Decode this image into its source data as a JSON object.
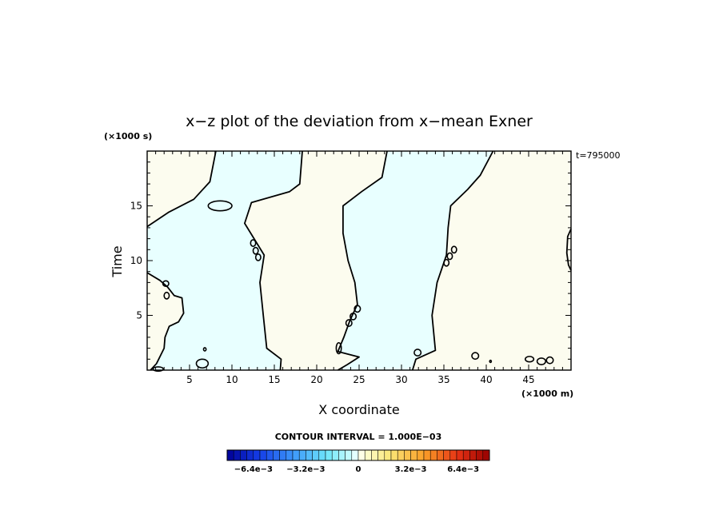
{
  "chart_data": {
    "type": "contour",
    "title": "x−z plot of the deviation from x−mean Exner",
    "xlabel": "X coordinate",
    "ylabel": "Time",
    "x_unit": "(×1000 m)",
    "y_unit": "(×1000 s)",
    "time_annotation": "t=795000",
    "xlim": [
      0,
      50
    ],
    "ylim": [
      0,
      20
    ],
    "xticks": [
      "5",
      "10",
      "15",
      "20",
      "25",
      "30",
      "35",
      "40",
      "45"
    ],
    "yticks": [
      "5",
      "10",
      "15"
    ],
    "x_tick_values": [
      5,
      10,
      15,
      20,
      25,
      30,
      35,
      40,
      45
    ],
    "y_tick_values": [
      5,
      10,
      15
    ],
    "contour_interval_label": "CONTOUR INTERVAL = 1.000E−03",
    "contour_interval": 0.001,
    "colorbar_labels": [
      "−6.4e−3",
      "−3.2e−3",
      "0",
      "3.2e−3",
      "6.4e−3"
    ],
    "colorbar_range": [
      -0.008,
      0.008
    ],
    "colorbar_bins": 40,
    "zero_contours": [
      {
        "name": "band1-right",
        "points": [
          [
            8.1,
            20
          ],
          [
            7.4,
            17.2
          ],
          [
            5.5,
            15.6
          ],
          [
            2.5,
            14.4
          ],
          [
            0,
            13.1
          ]
        ]
      },
      {
        "name": "band1-left",
        "points": [
          [
            0,
            8.9
          ],
          [
            1.5,
            8.2
          ],
          [
            2.4,
            7.6
          ],
          [
            3.2,
            6.8
          ],
          [
            4.1,
            6.6
          ],
          [
            4.3,
            5.2
          ],
          [
            3.7,
            4.4
          ],
          [
            2.6,
            4.0
          ],
          [
            2.1,
            3.0
          ],
          [
            2.0,
            2.0
          ],
          [
            1.1,
            0.6
          ],
          [
            0.4,
            0
          ]
        ]
      },
      {
        "name": "band2-left",
        "points": [
          [
            18.3,
            20
          ],
          [
            18.0,
            17.0
          ],
          [
            16.8,
            16.3
          ],
          [
            12.3,
            15.3
          ],
          [
            11.5,
            13.4
          ],
          [
            13.8,
            10.5
          ],
          [
            13.3,
            8.0
          ],
          [
            13.7,
            5.0
          ],
          [
            14.1,
            2.0
          ],
          [
            15.8,
            1.0
          ],
          [
            15.7,
            0
          ]
        ]
      },
      {
        "name": "band2-right",
        "points": [
          [
            28.3,
            20
          ],
          [
            27.7,
            17.6
          ],
          [
            25.3,
            16.3
          ],
          [
            23.1,
            15.0
          ],
          [
            23.1,
            12.5
          ],
          [
            23.7,
            10.0
          ],
          [
            24.5,
            8.0
          ],
          [
            24.8,
            6.0
          ],
          [
            23.9,
            4.5
          ],
          [
            23.2,
            3.0
          ],
          [
            22.5,
            1.7
          ],
          [
            25.0,
            1.2
          ],
          [
            23.6,
            0.5
          ],
          [
            22.5,
            0
          ]
        ]
      },
      {
        "name": "band3-left",
        "points": [
          [
            40.8,
            20
          ],
          [
            39.3,
            17.8
          ],
          [
            37.8,
            16.5
          ],
          [
            35.8,
            15.0
          ],
          [
            35.5,
            13.0
          ],
          [
            35.3,
            10.5
          ],
          [
            34.2,
            8.0
          ],
          [
            33.6,
            5.0
          ],
          [
            34.0,
            1.8
          ],
          [
            31.7,
            1.0
          ],
          [
            31.3,
            0
          ]
        ]
      },
      {
        "name": "right-edge-wiggle",
        "points": [
          [
            50,
            12.9
          ],
          [
            49.6,
            12.2
          ],
          [
            49.5,
            10.7
          ],
          [
            49.7,
            9.6
          ],
          [
            50,
            9.1
          ]
        ]
      }
    ],
    "blobs": [
      {
        "x": 8.6,
        "y": 15.0,
        "rx": 1.4,
        "ry": 0.45
      },
      {
        "x": 2.2,
        "y": 7.9,
        "rx": 0.35,
        "ry": 0.25
      },
      {
        "x": 2.3,
        "y": 6.8,
        "rx": 0.3,
        "ry": 0.3
      },
      {
        "x": 12.5,
        "y": 11.6,
        "rx": 0.3,
        "ry": 0.3
      },
      {
        "x": 12.8,
        "y": 10.9,
        "rx": 0.3,
        "ry": 0.3
      },
      {
        "x": 13.1,
        "y": 10.3,
        "rx": 0.3,
        "ry": 0.3
      },
      {
        "x": 23.8,
        "y": 4.3,
        "rx": 0.35,
        "ry": 0.3
      },
      {
        "x": 24.3,
        "y": 4.9,
        "rx": 0.35,
        "ry": 0.3
      },
      {
        "x": 24.8,
        "y": 5.6,
        "rx": 0.35,
        "ry": 0.3
      },
      {
        "x": 35.3,
        "y": 9.8,
        "rx": 0.3,
        "ry": 0.3
      },
      {
        "x": 35.7,
        "y": 10.4,
        "rx": 0.3,
        "ry": 0.3
      },
      {
        "x": 36.2,
        "y": 11.0,
        "rx": 0.3,
        "ry": 0.3
      },
      {
        "x": 22.6,
        "y": 2.0,
        "rx": 0.3,
        "ry": 0.5
      },
      {
        "x": 31.9,
        "y": 1.6,
        "rx": 0.4,
        "ry": 0.3
      },
      {
        "x": 38.7,
        "y": 1.3,
        "rx": 0.4,
        "ry": 0.3
      },
      {
        "x": 45.1,
        "y": 1.0,
        "rx": 0.5,
        "ry": 0.25
      },
      {
        "x": 46.5,
        "y": 0.8,
        "rx": 0.5,
        "ry": 0.3
      },
      {
        "x": 47.5,
        "y": 0.9,
        "rx": 0.4,
        "ry": 0.3
      },
      {
        "x": 6.5,
        "y": 0.6,
        "rx": 0.7,
        "ry": 0.4
      },
      {
        "x": 6.8,
        "y": 1.9,
        "rx": 0.15,
        "ry": 0.15
      },
      {
        "x": 1.3,
        "y": 0.1,
        "rx": 0.6,
        "ry": 0.2
      },
      {
        "x": 40.5,
        "y": 0.8,
        "rx": 0.1,
        "ry": 0.1
      }
    ],
    "colors": {
      "negative_fill": "#e8ffff",
      "positive_fill": "#fcfcef",
      "contour_line": "#000000"
    }
  }
}
